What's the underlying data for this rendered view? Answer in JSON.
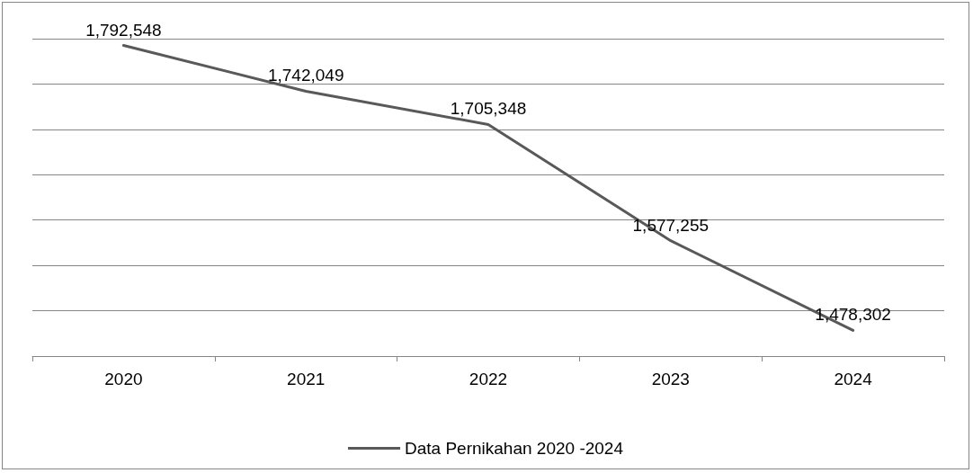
{
  "chart_data": {
    "type": "line",
    "categories": [
      "2020",
      "2021",
      "2022",
      "2023",
      "2024"
    ],
    "series": [
      {
        "name": "Data Pernikahan 2020 -2024",
        "color": "#595959",
        "values": [
          1792548,
          1742049,
          1705348,
          1577255,
          1478302
        ],
        "value_labels": [
          "1,792,548",
          "1,742,049",
          "1,705,348",
          "1,577,255",
          "1,478,302"
        ]
      }
    ],
    "tick_labels": "x",
    "grid": "y",
    "legend": "bottom",
    "marker": "none",
    "line_style": "solid"
  }
}
